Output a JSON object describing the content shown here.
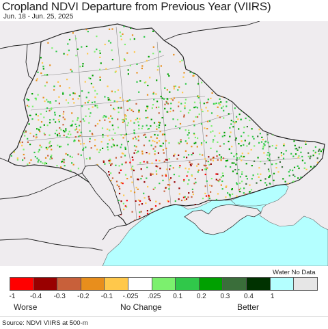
{
  "title": "Cropland NDVI Departure from Previous Year (VIIRS)",
  "subtitle": "Jun. 18 - Jun. 25, 2025",
  "legend": {
    "water_no_data_label": "Water No Data",
    "bins": [
      {
        "color": "#ff0000"
      },
      {
        "color": "#990000"
      },
      {
        "color": "#c8603a"
      },
      {
        "color": "#e88e1c"
      },
      {
        "color": "#ffc84b"
      },
      {
        "color": "#ffffff"
      },
      {
        "color": "#7cf06e"
      },
      {
        "color": "#30c84a"
      },
      {
        "color": "#00a000"
      },
      {
        "color": "#3a6e3a"
      },
      {
        "color": "#003200"
      },
      {
        "color": "#b4ffff"
      },
      {
        "color": "#e6e6e6"
      }
    ],
    "tick_labels": [
      "-1",
      "-0.4",
      "-0.3",
      "-0.2",
      "-0.1",
      "-.025",
      ".025",
      "0.1",
      "0.2",
      "0.3",
      "0.4",
      "1"
    ],
    "categories": {
      "worse": "Worse",
      "no_change": "No Change",
      "better": "Better"
    }
  },
  "source": "Source: NDVI VIIRS at 500-m",
  "colors": {
    "land": "#efecef",
    "sea": "#b4ffff",
    "border": "#333333",
    "oblast_border": "#888888"
  }
}
